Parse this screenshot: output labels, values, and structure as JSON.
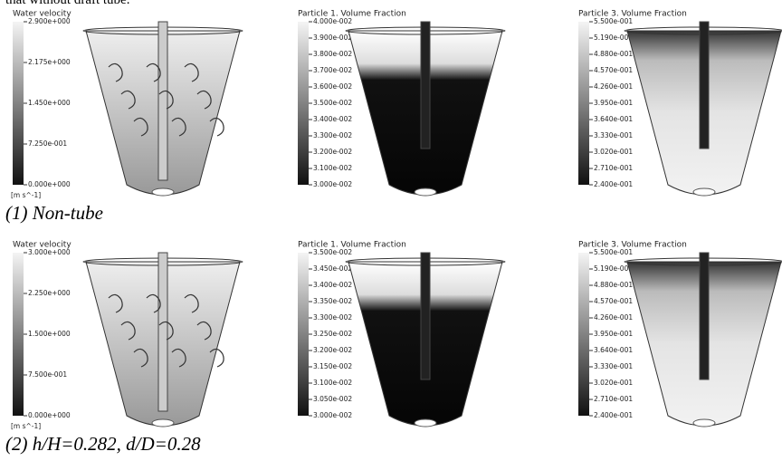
{
  "top_text": "that without draft tube.",
  "rows": [
    {
      "caption": "(1) Non-tube",
      "panels": [
        {
          "title": "Water velocity",
          "ticks": [
            "2.900e+000",
            "2.175e+000",
            "1.450e+000",
            "7.250e-001",
            "0.000e+000"
          ],
          "unit": "[m s^-1]"
        },
        {
          "title": "Particle 1. Volume Fraction",
          "ticks": [
            "4.000e-002",
            "3.900e-002",
            "3.800e-002",
            "3.700e-002",
            "3.600e-002",
            "3.500e-002",
            "3.400e-002",
            "3.300e-002",
            "3.200e-002",
            "3.100e-002",
            "3.000e-002"
          ]
        },
        {
          "title": "Particle 3. Volume Fraction",
          "ticks": [
            "5.500e-001",
            "5.190e-001",
            "4.880e-001",
            "4.570e-001",
            "4.260e-001",
            "3.950e-001",
            "3.640e-001",
            "3.330e-001",
            "3.020e-001",
            "2.710e-001",
            "2.400e-001"
          ]
        }
      ]
    },
    {
      "caption": "(2) h/H=0.282, d/D=0.28",
      "panels": [
        {
          "title": "Water velocity",
          "ticks": [
            "3.000e+000",
            "2.250e+000",
            "1.500e+000",
            "7.500e-001",
            "0.000e+000"
          ],
          "unit": "[m s^-1]"
        },
        {
          "title": "Particle 1. Volume Fraction",
          "ticks": [
            "3.500e-002",
            "3.450e-002",
            "3.400e-002",
            "3.350e-002",
            "3.300e-002",
            "3.250e-002",
            "3.200e-002",
            "3.150e-002",
            "3.100e-002",
            "3.050e-002",
            "3.000e-002"
          ]
        },
        {
          "title": "Particle 3. Volume Fraction",
          "ticks": [
            "5.500e-001",
            "5.190e-001",
            "4.880e-001",
            "4.570e-001",
            "4.260e-001",
            "3.950e-001",
            "3.640e-001",
            "3.330e-001",
            "3.020e-001",
            "2.710e-001",
            "2.400e-001"
          ]
        }
      ]
    }
  ]
}
